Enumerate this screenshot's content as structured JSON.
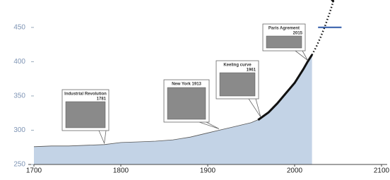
{
  "chart_data": {
    "type": "line",
    "xlim": [
      1700,
      2100
    ],
    "xticks": [
      1700,
      1800,
      1900,
      2000,
      2100
    ],
    "ylim": [
      250,
      490
    ],
    "yticks": [
      250,
      300,
      350,
      400,
      450
    ],
    "series": [
      {
        "style": "area",
        "color": "#c3d3e6",
        "x": [
          1700,
          1720,
          1740,
          1760,
          1781,
          1800,
          1820,
          1840,
          1860,
          1880,
          1900,
          1913,
          1930,
          1950,
          1961,
          1970,
          1980,
          1990,
          2000,
          2010,
          2015,
          2020
        ],
        "values": [
          276,
          277,
          277,
          278,
          279,
          282,
          283,
          284,
          286,
          290,
          296,
          300,
          305,
          311,
          317,
          326,
          339,
          354,
          369,
          389,
          400,
          410
        ]
      },
      {
        "style": "line",
        "color": "#111111",
        "x": [
          1958,
          1970,
          1980,
          1990,
          2000,
          2010,
          2015,
          2020
        ],
        "values": [
          315,
          326,
          339,
          354,
          369,
          389,
          400,
          410
        ]
      },
      {
        "style": "dotted",
        "color": "#111111",
        "x": [
          2020,
          2025,
          2030,
          2035,
          2040,
          2045
        ],
        "values": [
          410,
          422,
          436,
          452,
          470,
          490
        ]
      },
      {
        "style": "target",
        "color": "#2f5aa8",
        "x": [
          2027,
          2054
        ],
        "values": [
          450,
          450
        ]
      }
    ],
    "annotations": [
      {
        "label": "Industrial Revolution",
        "year": "1781",
        "x": 1781,
        "y": 279
      },
      {
        "label": "New York 1913",
        "x": 1913,
        "y": 300
      },
      {
        "label": "Keeling curve",
        "year": "1961",
        "x": 1961,
        "y": 317
      },
      {
        "label": "Paris Agrement",
        "year": "2015",
        "x": 2015,
        "y": 400
      }
    ]
  }
}
